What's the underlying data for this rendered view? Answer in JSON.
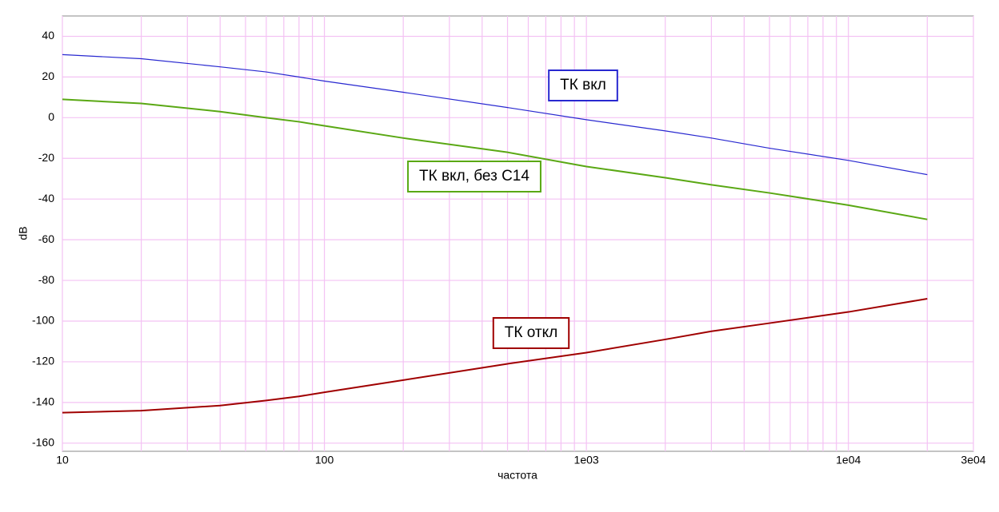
{
  "chart_data": {
    "type": "line",
    "xlabel": "частота",
    "ylabel": "dB",
    "xscale": "log",
    "xlim": [
      10,
      30000
    ],
    "ylim": [
      -164,
      50
    ],
    "xticks": [
      10,
      100,
      {
        "value": 1000,
        "label": "1e03"
      },
      {
        "value": 10000,
        "label": "1e04"
      },
      {
        "value": 30000,
        "label": "3e04"
      }
    ],
    "xminorticks": [
      20,
      30,
      40,
      50,
      60,
      70,
      80,
      90,
      200,
      300,
      400,
      500,
      600,
      700,
      800,
      900,
      2000,
      3000,
      4000,
      5000,
      6000,
      7000,
      8000,
      9000,
      20000
    ],
    "yticks": [
      40,
      20,
      0,
      -20,
      -40,
      -60,
      -80,
      -100,
      -120,
      -140,
      -160
    ],
    "grid": true,
    "x": [
      10,
      20,
      40,
      60,
      80,
      100,
      200,
      500,
      1000,
      2000,
      3000,
      5000,
      10000,
      20000
    ],
    "series": [
      {
        "name": "ТК вкл",
        "color": "#2828d0",
        "values": [
          31,
          29,
          25,
          22.5,
          20,
          18,
          12.5,
          5,
          -1,
          -6.5,
          -10,
          -15,
          -21,
          -28
        ]
      },
      {
        "name": "ТК вкл, без С14",
        "color": "#5aa814",
        "values": [
          9,
          7,
          3,
          0,
          -2,
          -4,
          -10,
          -17,
          -24,
          -29.5,
          -33,
          -37,
          -43,
          -50
        ]
      },
      {
        "name": "ТК откл",
        "color": "#a00000",
        "values": [
          -145,
          -144,
          -141.5,
          -139,
          -137,
          -135,
          -129,
          -121,
          -115.5,
          -109,
          -105,
          -101,
          -95.5,
          -89
        ]
      }
    ]
  }
}
